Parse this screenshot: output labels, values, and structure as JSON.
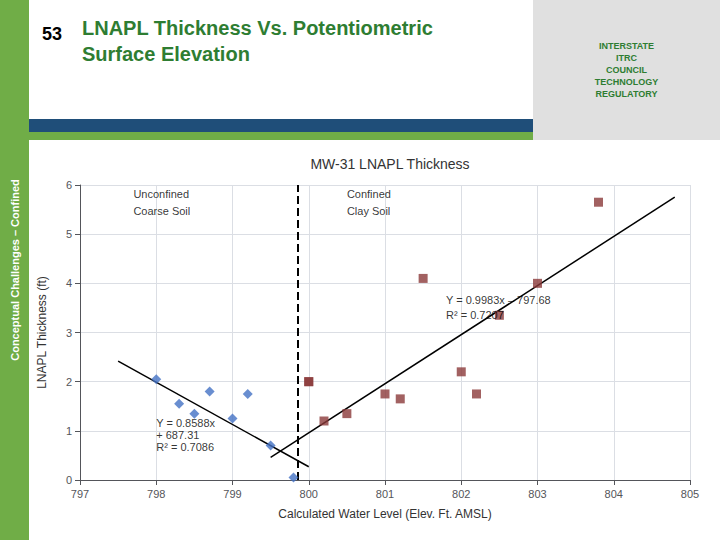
{
  "chart_data": {
    "type": "scatter",
    "title": "MW-31 LNAPL Thickness",
    "xlabel": "Calculated Water Level (Elev. Ft. AMSL)",
    "ylabel": "LNAPL Thickness (ft)",
    "xlim": [
      797,
      805
    ],
    "ylim": [
      0,
      6
    ],
    "xticks": [
      797,
      798,
      799,
      800,
      801,
      802,
      803,
      804,
      805
    ],
    "yticks": [
      0,
      1,
      2,
      3,
      4,
      5,
      6
    ],
    "grid": true,
    "series": [
      {
        "type": "scatter",
        "marker": "diamond",
        "color": "#4472C4",
        "x": [
          798.0,
          798.3,
          798.5,
          798.7,
          799.0,
          799.2,
          799.5,
          799.8
        ],
        "values": [
          2.05,
          1.55,
          1.35,
          1.8,
          1.25,
          1.75,
          0.7,
          0.05
        ]
      },
      {
        "type": "scatter",
        "marker": "square",
        "color": "#8B3A3A",
        "x": [
          800.0,
          800.0,
          800.2,
          800.5,
          801.0,
          801.2,
          801.5,
          802.0,
          802.2,
          802.5,
          803.0,
          803.8
        ],
        "values": [
          2.0,
          2.0,
          1.2,
          1.35,
          1.75,
          1.65,
          4.1,
          2.2,
          1.75,
          3.35,
          4.0,
          5.65
        ]
      },
      {
        "type": "line",
        "line_style": "solid",
        "color": "#000000",
        "x": [
          797.5,
          800.0
        ],
        "values": [
          2.417,
          0.27
        ]
      },
      {
        "type": "line",
        "line_style": "solid",
        "color": "#000000",
        "x": [
          799.5,
          804.8
        ],
        "values": [
          0.46085,
          5.75184
        ]
      }
    ],
    "vlines": [
      {
        "x": 799.85,
        "line_style": "dashed",
        "color": "#000000"
      }
    ],
    "annotation_color": "#000000",
    "annotations": [
      {
        "text": "Y = 0.8588x",
        "x": 798.0,
        "y": 1.05
      },
      {
        "text": "+ 687.31",
        "x": 798.0,
        "y": 0.8
      },
      {
        "text": "R² = 0.7086",
        "x": 798.0,
        "y": 0.55
      },
      {
        "text": "Y = 0.9983x – 797.68",
        "x": 801.8,
        "y": 3.55
      },
      {
        "text": "R² = 0.7207",
        "x": 801.8,
        "y": 3.25
      },
      {
        "text": "Unconfined",
        "x": 797.7,
        "y": 5.7
      },
      {
        "text": "Coarse Soil",
        "x": 797.7,
        "y": 5.35
      },
      {
        "text": "Confined",
        "x": 800.5,
        "y": 5.7
      },
      {
        "text": "Clay Soil",
        "x": 800.5,
        "y": 5.35
      }
    ],
    "header": {
      "number": "53",
      "title": "LNAPL Thickness Vs. Potentiometric\nSurface Elevation",
      "title_color": "#2E7D32",
      "text_color": "#000000",
      "bar_colors": [
        "#1F4E79",
        "#70AD47"
      ]
    },
    "side_label": {
      "text": "Conceptual Challenges – Confined",
      "color": "#70AD47",
      "text_color": "#FFFFFF"
    },
    "logo": {
      "text": "INTERSTATE\nITRC\nCOUNCIL\nTECHNOLOGY\nREGULATORY",
      "color": "#E0E0E0",
      "text_color": "#2E7D32"
    },
    "background_color": "#FFFFFF"
  }
}
